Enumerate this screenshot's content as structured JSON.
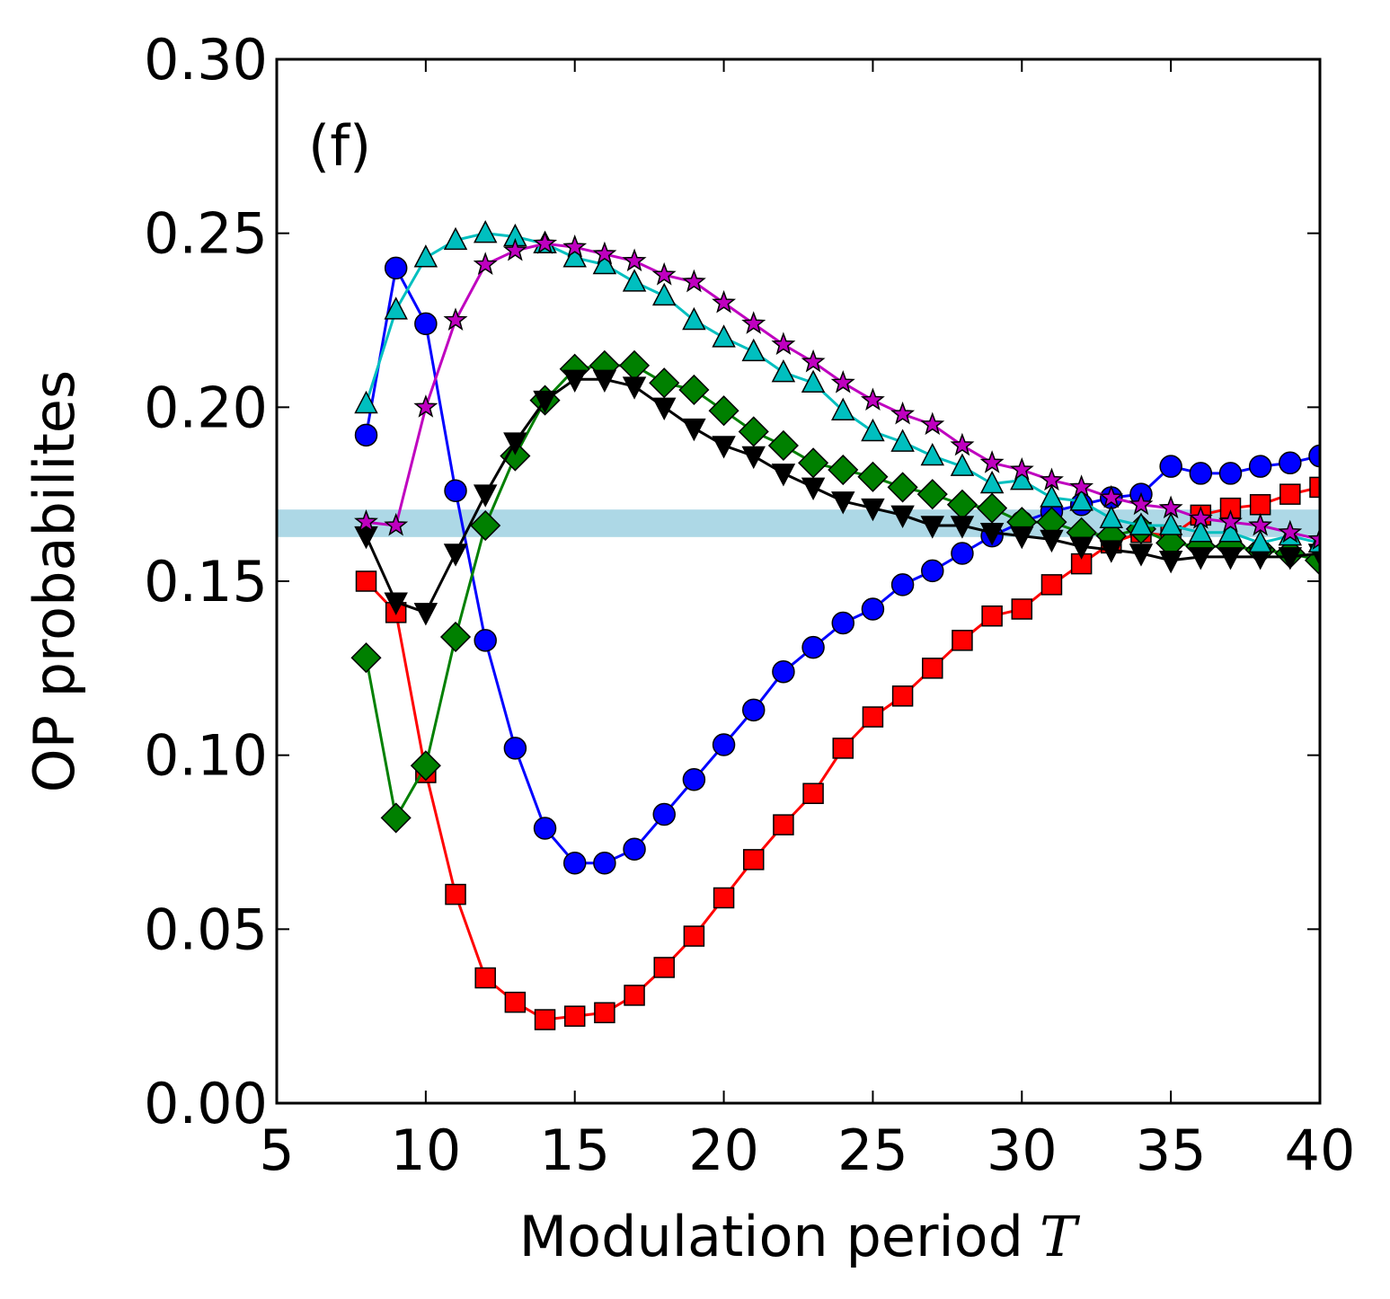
{
  "chart_data": {
    "type": "line",
    "panel_label": "(f)",
    "xlabel": "Modulation period",
    "xlabel_symbol": "T",
    "ylabel": "OP probabilites",
    "xlim": [
      5,
      40
    ],
    "ylim": [
      0,
      0.3
    ],
    "xticks": [
      "5",
      "10",
      "15",
      "20",
      "25",
      "30",
      "35",
      "40"
    ],
    "yticks": [
      "0.00",
      "0.05",
      "0.10",
      "0.15",
      "0.20",
      "0.25",
      "0.30"
    ],
    "reference_band": {
      "y_min": 0.1627,
      "y_max": 0.1706,
      "color": "#add8e6"
    },
    "x": [
      8,
      9,
      10,
      11,
      12,
      13,
      14,
      15,
      16,
      17,
      18,
      19,
      20,
      21,
      22,
      23,
      24,
      25,
      26,
      27,
      28,
      29,
      30,
      31,
      32,
      33,
      34,
      35,
      36,
      37,
      38,
      39,
      40
    ],
    "series": [
      {
        "name": "blue-circles",
        "color": "#0000ff",
        "marker": "circle",
        "values": [
          0.192,
          0.24,
          0.224,
          0.176,
          0.133,
          0.102,
          0.079,
          0.069,
          0.069,
          0.073,
          0.083,
          0.093,
          0.103,
          0.113,
          0.124,
          0.131,
          0.138,
          0.142,
          0.149,
          0.153,
          0.158,
          0.163,
          0.167,
          0.17,
          0.172,
          0.174,
          0.175,
          0.183,
          0.181,
          0.181,
          0.183,
          0.184,
          0.186
        ]
      },
      {
        "name": "red-squares",
        "color": "#ff0000",
        "marker": "square",
        "values": [
          0.15,
          0.141,
          0.095,
          0.06,
          0.036,
          0.029,
          0.024,
          0.025,
          0.026,
          0.031,
          0.039,
          0.048,
          0.059,
          0.07,
          0.08,
          0.089,
          0.102,
          0.111,
          0.117,
          0.125,
          0.133,
          0.14,
          0.142,
          0.149,
          0.155,
          0.161,
          0.164,
          0.163,
          0.169,
          0.171,
          0.172,
          0.175,
          0.177
        ]
      },
      {
        "name": "green-diamonds",
        "color": "#008000",
        "marker": "diamond",
        "values": [
          0.128,
          0.082,
          0.097,
          0.134,
          0.166,
          0.186,
          0.202,
          0.211,
          0.212,
          0.212,
          0.207,
          0.205,
          0.199,
          0.193,
          0.189,
          0.184,
          0.182,
          0.18,
          0.177,
          0.175,
          0.172,
          0.171,
          0.167,
          0.167,
          0.164,
          0.163,
          0.165,
          0.161,
          0.16,
          0.16,
          0.159,
          0.158,
          0.156
        ]
      },
      {
        "name": "black-triangles-down",
        "color": "#000000",
        "marker": "triangle-down",
        "values": [
          0.163,
          0.144,
          0.141,
          0.158,
          0.175,
          0.19,
          0.202,
          0.208,
          0.208,
          0.206,
          0.2,
          0.194,
          0.189,
          0.186,
          0.181,
          0.177,
          0.173,
          0.171,
          0.169,
          0.166,
          0.166,
          0.164,
          0.163,
          0.162,
          0.16,
          0.159,
          0.158,
          0.156,
          0.157,
          0.157,
          0.157,
          0.157,
          0.158
        ]
      },
      {
        "name": "cyan-triangles-up",
        "color": "#00bfbf",
        "marker": "triangle-up",
        "values": [
          0.201,
          0.228,
          0.243,
          0.248,
          0.25,
          0.249,
          0.247,
          0.243,
          0.241,
          0.236,
          0.232,
          0.225,
          0.22,
          0.216,
          0.21,
          0.207,
          0.199,
          0.193,
          0.19,
          0.186,
          0.183,
          0.178,
          0.179,
          0.174,
          0.173,
          0.168,
          0.166,
          0.166,
          0.164,
          0.164,
          0.161,
          0.163,
          0.161
        ]
      },
      {
        "name": "magenta-stars",
        "color": "#bf00bf",
        "marker": "star",
        "values": [
          0.167,
          0.166,
          0.2,
          0.225,
          0.241,
          0.245,
          0.247,
          0.246,
          0.244,
          0.242,
          0.238,
          0.236,
          0.23,
          0.224,
          0.218,
          0.213,
          0.207,
          0.202,
          0.198,
          0.195,
          0.189,
          0.184,
          0.182,
          0.179,
          0.177,
          0.174,
          0.172,
          0.171,
          0.168,
          0.167,
          0.166,
          0.164,
          0.162
        ]
      }
    ]
  }
}
